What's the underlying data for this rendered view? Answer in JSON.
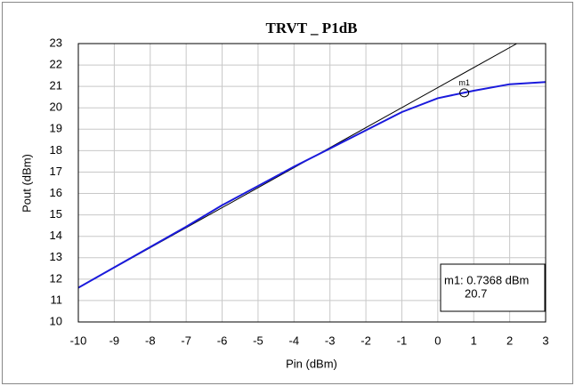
{
  "chart_data": {
    "type": "line",
    "title": "TRVT _ P1dB",
    "x_label": "Pin (dBm)",
    "y_label": "Pout (dBm)",
    "xlim": [
      -10,
      3
    ],
    "xticks": [
      -10,
      -9,
      -8,
      -7,
      -6,
      -5,
      -4,
      -3,
      -2,
      -1,
      0,
      1,
      2,
      3
    ],
    "ylim": [
      10,
      23
    ],
    "yticks": [
      10,
      11,
      12,
      13,
      14,
      15,
      16,
      17,
      18,
      19,
      20,
      21,
      22,
      23
    ],
    "grid": true,
    "series": [
      {
        "color": "#1a1adc",
        "x": [
          -10,
          -9,
          -8,
          -7,
          -6,
          -5,
          -4,
          -3,
          -2,
          -1,
          0,
          1,
          2,
          3
        ],
        "values": [
          11.6,
          12.55,
          13.5,
          14.45,
          15.45,
          16.35,
          17.25,
          18.1,
          18.95,
          19.8,
          20.45,
          20.8,
          21.1,
          21.2
        ]
      },
      {
        "color": "#000000",
        "x": [
          -10,
          2.2
        ],
        "values": [
          11.6,
          23
        ]
      }
    ],
    "marker": {
      "name": "m1",
      "x": 0.7368,
      "y": 20.7,
      "label_lines": [
        "m1: 0.7368 dBm",
        "20.7"
      ]
    }
  }
}
